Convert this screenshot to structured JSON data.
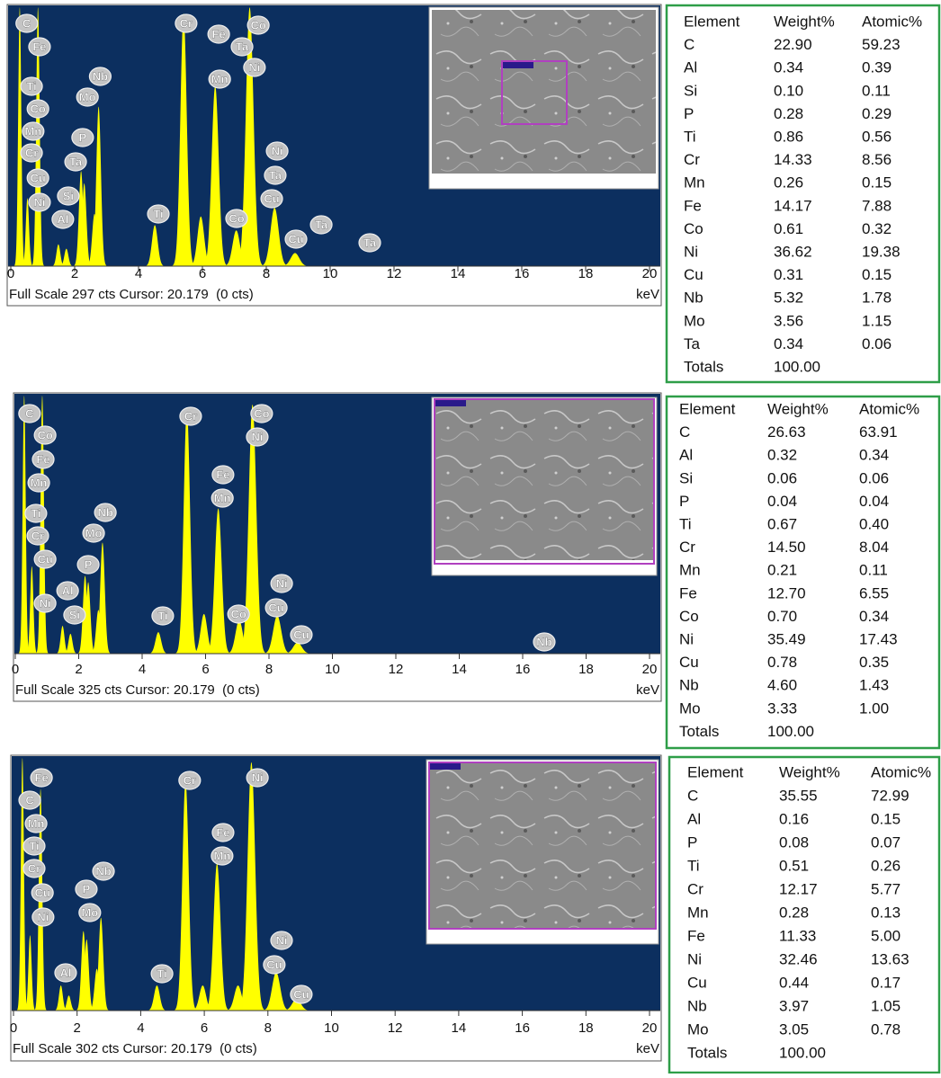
{
  "chart_data": [
    {
      "type": "spectrum",
      "color": "#ffff00",
      "footer": "Full Scale 297 cts Cursor: 20.179  (0 cts)",
      "x_unit": "keV",
      "xlim": [
        0,
        20
      ],
      "xticks": [
        0,
        2,
        4,
        6,
        8,
        10,
        12,
        14,
        16,
        18,
        20
      ],
      "ylim": [
        0,
        297
      ],
      "peaks": {
        "x": [
          0.28,
          0.52,
          0.85,
          1.49,
          1.74,
          2.2,
          2.3,
          2.62,
          2.75,
          4.51,
          5.41,
          5.95,
          6.4,
          7.06,
          7.48,
          8.26,
          8.9
        ],
        "values": [
          297,
          78,
          297,
          25,
          20,
          109,
          95,
          60,
          183,
          47,
          290,
          57,
          207,
          41,
          297,
          67,
          15
        ]
      },
      "labels": [
        {
          "text": "C",
          "x": 0.5
        },
        {
          "text": "Fe",
          "x": 0.9
        },
        {
          "text": "Ti",
          "x": 0.65
        },
        {
          "text": "Co",
          "x": 0.85
        },
        {
          "text": "Mn",
          "x": 0.7
        },
        {
          "text": "Cr",
          "x": 0.65
        },
        {
          "text": "Cu",
          "x": 0.85
        },
        {
          "text": "Ni",
          "x": 0.9
        },
        {
          "text": "Al",
          "x": 1.63
        },
        {
          "text": "Si",
          "x": 1.8
        },
        {
          "text": "Ta",
          "x": 2.03
        },
        {
          "text": "P",
          "x": 2.25
        },
        {
          "text": "Mo",
          "x": 2.4
        },
        {
          "text": "Nb",
          "x": 2.8
        },
        {
          "text": "Ti",
          "x": 4.62
        },
        {
          "text": "Cr",
          "x": 5.49
        },
        {
          "text": "Fe",
          "x": 6.51
        },
        {
          "text": "Mn",
          "x": 6.54
        },
        {
          "text": "Co",
          "x": 7.07
        },
        {
          "text": "Ta",
          "x": 7.24
        },
        {
          "text": "Co",
          "x": 7.75
        },
        {
          "text": "Ni",
          "x": 7.63
        },
        {
          "text": "Ni",
          "x": 8.34
        },
        {
          "text": "Ta",
          "x": 8.28
        },
        {
          "text": "Cu",
          "x": 8.17
        },
        {
          "text": "Cu",
          "x": 8.93
        },
        {
          "text": "Ta",
          "x": 9.72
        },
        {
          "text": "Ta",
          "x": 11.24
        }
      ]
    },
    {
      "type": "spectrum",
      "color": "#ffff00",
      "footer": "Full Scale 325 cts Cursor: 20.179  (0 cts)",
      "x_unit": "keV",
      "xlim": [
        0,
        20
      ],
      "xticks": [
        0,
        2,
        4,
        6,
        8,
        10,
        12,
        14,
        16,
        18,
        20
      ],
      "ylim": [
        0,
        325
      ],
      "peaks": {
        "x": [
          0.28,
          0.52,
          0.85,
          1.49,
          1.74,
          2.2,
          2.3,
          2.62,
          2.75,
          4.51,
          5.41,
          5.95,
          6.4,
          7.06,
          7.48,
          8.26,
          8.9
        ],
        "values": [
          325,
          110,
          325,
          35,
          25,
          98,
          90,
          55,
          140,
          27,
          308,
          50,
          183,
          42,
          314,
          48,
          14
        ]
      },
      "labels": [
        {
          "text": "C",
          "x": 0.45
        },
        {
          "text": "Co",
          "x": 0.94
        },
        {
          "text": "Fe",
          "x": 0.88
        },
        {
          "text": "Mn",
          "x": 0.74
        },
        {
          "text": "Ti",
          "x": 0.65
        },
        {
          "text": "Cr",
          "x": 0.71
        },
        {
          "text": "Cu",
          "x": 0.94
        },
        {
          "text": "Ni",
          "x": 0.94
        },
        {
          "text": "Al",
          "x": 1.65
        },
        {
          "text": "Si",
          "x": 1.87
        },
        {
          "text": "P",
          "x": 2.3
        },
        {
          "text": "Mo",
          "x": 2.47
        },
        {
          "text": "Nb",
          "x": 2.84
        },
        {
          "text": "Ti",
          "x": 4.65
        },
        {
          "text": "Cr",
          "x": 5.53
        },
        {
          "text": "Fe",
          "x": 6.55
        },
        {
          "text": "Mn",
          "x": 6.53
        },
        {
          "text": "Co",
          "x": 7.04
        },
        {
          "text": "Co",
          "x": 7.77
        },
        {
          "text": "Ni",
          "x": 7.63
        },
        {
          "text": "Ni",
          "x": 8.4
        },
        {
          "text": "Cu",
          "x": 8.23
        },
        {
          "text": "Cu",
          "x": 9.02
        },
        {
          "text": "Nb",
          "x": 16.68
        }
      ]
    },
    {
      "type": "spectrum",
      "color": "#ffff00",
      "footer": "Full Scale 302 cts Cursor: 20.179  (0 cts)",
      "x_unit": "keV",
      "xlim": [
        0,
        20
      ],
      "xticks": [
        0,
        2,
        4,
        6,
        8,
        10,
        12,
        14,
        16,
        18,
        20
      ],
      "ylim": [
        0,
        302
      ],
      "peaks": {
        "x": [
          0.28,
          0.52,
          0.85,
          1.49,
          1.74,
          2.2,
          2.3,
          2.62,
          2.75,
          4.51,
          5.41,
          5.95,
          6.4,
          7.06,
          7.48,
          8.26,
          8.9
        ],
        "values": [
          302,
          90,
          265,
          30,
          18,
          95,
          85,
          50,
          111,
          30,
          275,
          30,
          176,
          30,
          297,
          46,
          14
        ]
      },
      "labels": [
        {
          "text": "Fe",
          "x": 0.88
        },
        {
          "text": "C",
          "x": 0.51
        },
        {
          "text": "Mn",
          "x": 0.71
        },
        {
          "text": "Ti",
          "x": 0.65
        },
        {
          "text": "Cr",
          "x": 0.65
        },
        {
          "text": "Cu",
          "x": 0.91
        },
        {
          "text": "Ni",
          "x": 0.93
        },
        {
          "text": "P",
          "x": 2.29
        },
        {
          "text": "Mo",
          "x": 2.4
        },
        {
          "text": "Nb",
          "x": 2.83
        },
        {
          "text": "Al",
          "x": 1.64
        },
        {
          "text": "Ti",
          "x": 4.67
        },
        {
          "text": "Cr",
          "x": 5.54
        },
        {
          "text": "Fe",
          "x": 6.59
        },
        {
          "text": "Mn",
          "x": 6.56
        },
        {
          "text": "Ni",
          "x": 7.67
        },
        {
          "text": "Ni",
          "x": 8.43
        },
        {
          "text": "Cu",
          "x": 8.2
        },
        {
          "text": "Cu",
          "x": 9.05
        }
      ]
    }
  ],
  "tables": [
    {
      "header": [
        "Element",
        "Weight%",
        "Atomic%"
      ],
      "rows": [
        [
          "C",
          "22.90",
          "59.23"
        ],
        [
          "Al",
          "0.34",
          "0.39"
        ],
        [
          "Si",
          "0.10",
          "0.11"
        ],
        [
          "P",
          "0.28",
          "0.29"
        ],
        [
          "Ti",
          "0.86",
          "0.56"
        ],
        [
          "Cr",
          "14.33",
          "8.56"
        ],
        [
          "Mn",
          "0.26",
          "0.15"
        ],
        [
          "Fe",
          "14.17",
          "7.88"
        ],
        [
          "Co",
          "0.61",
          "0.32"
        ],
        [
          "Ni",
          "36.62",
          "19.38"
        ],
        [
          "Cu",
          "0.31",
          "0.15"
        ],
        [
          "Nb",
          "5.32",
          "1.78"
        ],
        [
          "Mo",
          "3.56",
          "1.15"
        ],
        [
          "Ta",
          "0.34",
          "0.06"
        ],
        [
          "Totals",
          "100.00"
        ]
      ]
    },
    {
      "header": [
        "Element",
        "Weight%",
        "Atomic%"
      ],
      "rows": [
        [
          "C",
          "26.63",
          "63.91"
        ],
        [
          "Al",
          "0.32",
          "0.34"
        ],
        [
          "Si",
          "0.06",
          "0.06"
        ],
        [
          "P",
          "0.04",
          "0.04"
        ],
        [
          "Ti",
          "0.67",
          "0.40"
        ],
        [
          "Cr",
          "14.50",
          "8.04"
        ],
        [
          "Mn",
          "0.21",
          "0.11"
        ],
        [
          "Fe",
          "12.70",
          "6.55"
        ],
        [
          "Co",
          "0.70",
          "0.34"
        ],
        [
          "Ni",
          "35.49",
          "17.43"
        ],
        [
          "Cu",
          "0.78",
          "0.35"
        ],
        [
          "Nb",
          "4.60",
          "1.43"
        ],
        [
          "Mo",
          "3.33",
          "1.00"
        ],
        [
          "Totals",
          "100.00"
        ]
      ]
    },
    {
      "header": [
        "Element",
        "Weight%",
        "Atomic%"
      ],
      "rows": [
        [
          "C",
          "35.55",
          "72.99"
        ],
        [
          "Al",
          "0.16",
          "0.15"
        ],
        [
          "P",
          "0.08",
          "0.07"
        ],
        [
          "Ti",
          "0.51",
          "0.26"
        ],
        [
          "Cr",
          "12.17",
          "5.77"
        ],
        [
          "Mn",
          "0.28",
          "0.13"
        ],
        [
          "Fe",
          "11.33",
          "5.00"
        ],
        [
          "Ni",
          "32.46",
          "13.63"
        ],
        [
          "Cu",
          "0.44",
          "0.17"
        ],
        [
          "Nb",
          "3.97",
          "1.05"
        ],
        [
          "Mo",
          "3.05",
          "0.78"
        ],
        [
          "Totals",
          "100.00"
        ]
      ]
    }
  ]
}
